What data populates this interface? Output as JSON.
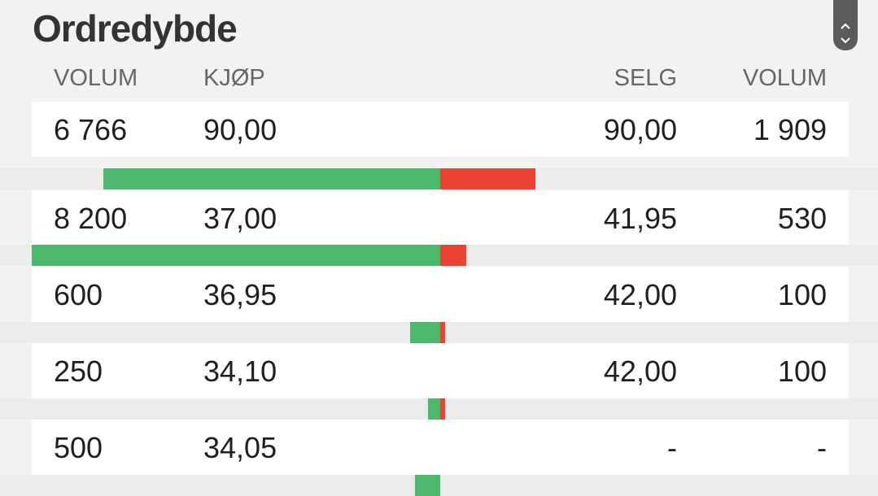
{
  "title": "Ordredybde",
  "header": {
    "volum_buy": "VOLUM",
    "kjop": "KJØP",
    "selg": "SELG",
    "volum_sell": "VOLUM"
  },
  "colors": {
    "buy": "#4cb86b",
    "sell": "#ea4335"
  },
  "icons": {
    "scroll_up": "chevron-up-icon",
    "scroll_down": "chevron-down-icon"
  },
  "rows": [
    {
      "buy_volume": "6 766",
      "buy_price": "90,00",
      "sell_price": "90,00",
      "sell_volume": "1 909"
    },
    {
      "buy_volume": "8 200",
      "buy_price": "37,00",
      "sell_price": "41,95",
      "sell_volume": "530"
    },
    {
      "buy_volume": "600",
      "buy_price": "36,95",
      "sell_price": "42,00",
      "sell_volume": "100"
    },
    {
      "buy_volume": "250",
      "buy_price": "34,10",
      "sell_price": "42,00",
      "sell_volume": "100"
    },
    {
      "buy_volume": "500",
      "buy_price": "34,05",
      "sell_price": "-",
      "sell_volume": "-"
    }
  ]
}
